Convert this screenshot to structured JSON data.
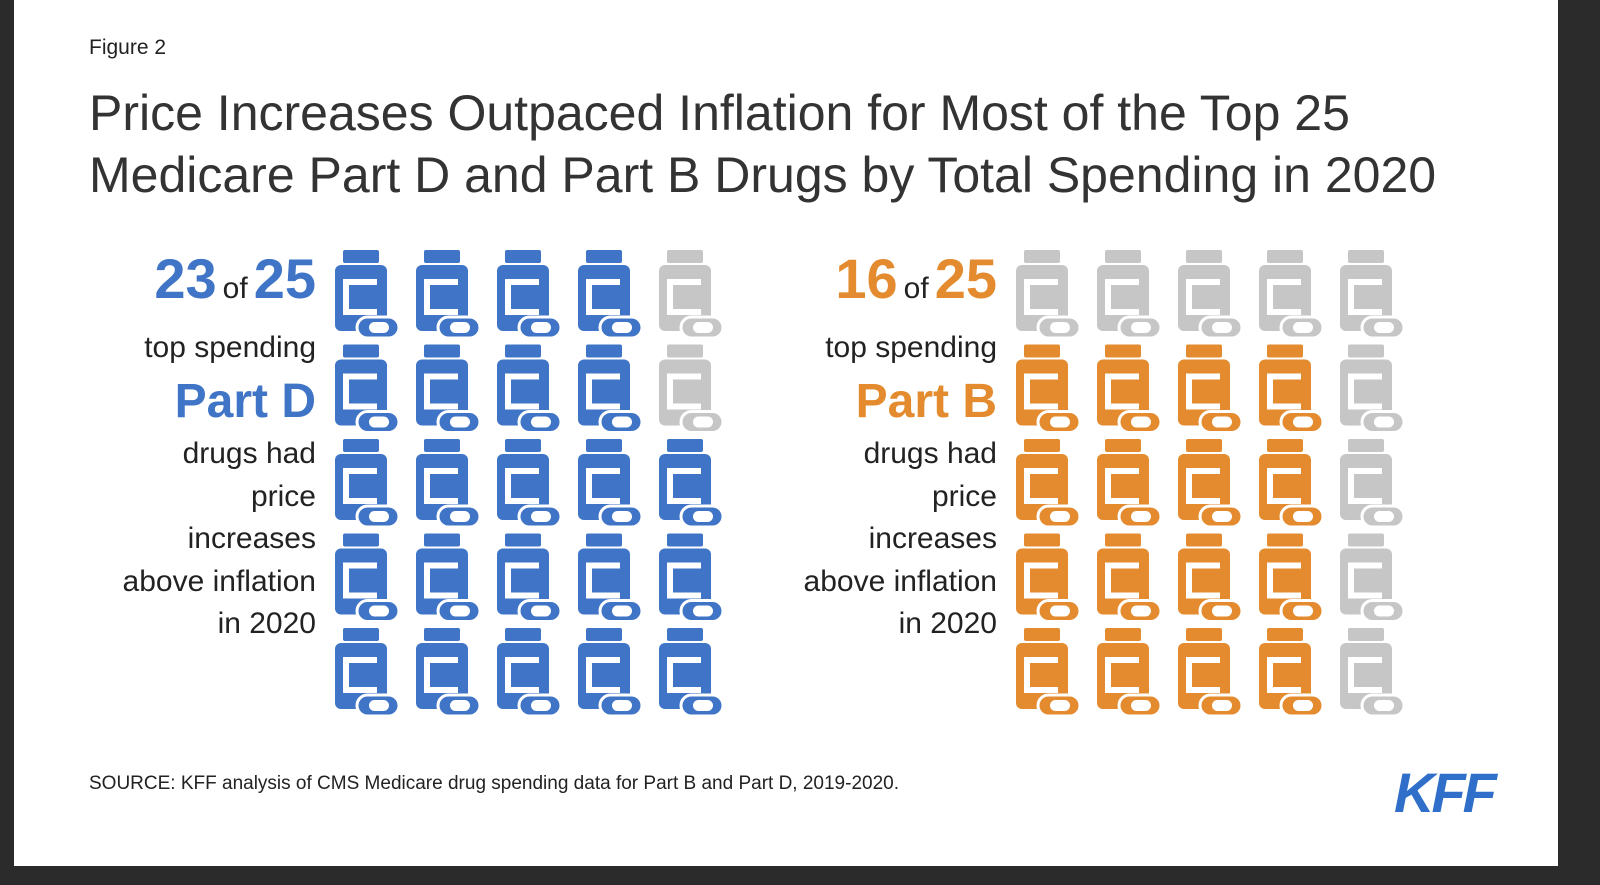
{
  "figure_label": "Figure 2",
  "title": [
    "Price Increases Outpaced Inflation for Most of the Top 25",
    "Medicare Part D and Part B Drugs by Total Spending in 2020"
  ],
  "source": "SOURCE: KFF analysis of CMS Medicare drug spending data for Part B and Part D, 2019-2020.",
  "logo": "KFF",
  "chart_data": [
    {
      "type": "pictogram",
      "value": 23,
      "connector": "of",
      "total": 25,
      "color": "#3f74c6",
      "empty_color": "#c6c6c6",
      "lines_before": [
        "top spending"
      ],
      "group": "Part D",
      "lines_after": [
        "drugs had",
        "price",
        "increases",
        "above inflation",
        "in 2020"
      ]
    },
    {
      "type": "pictogram",
      "value": 16,
      "connector": "of",
      "total": 25,
      "color": "#e38b2e",
      "empty_color": "#c6c6c6",
      "lines_before": [
        "top spending"
      ],
      "group": "Part B",
      "lines_after": [
        "drugs had",
        "price",
        "increases",
        "above inflation",
        "in 2020"
      ]
    }
  ]
}
